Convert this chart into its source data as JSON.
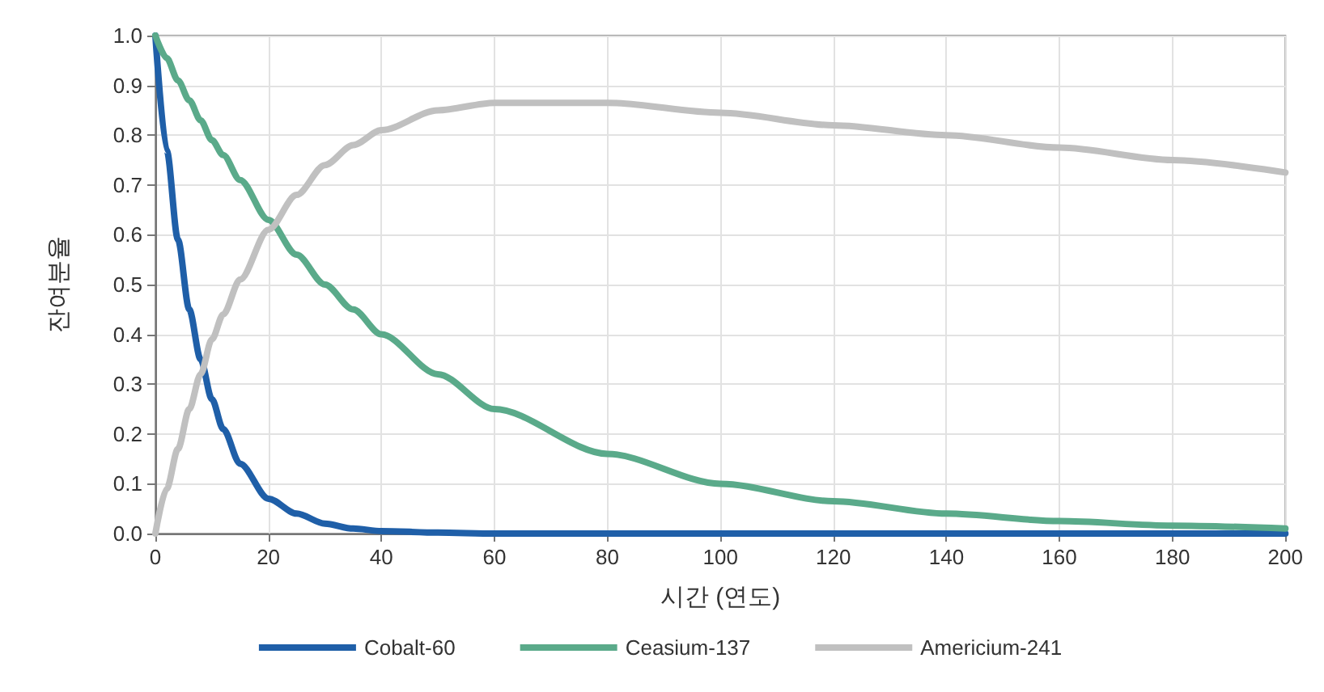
{
  "chart_data": {
    "type": "line",
    "xlabel": "시간 (연도)",
    "ylabel": "잔여분율",
    "x": [
      0,
      2,
      4,
      6,
      8,
      10,
      12,
      15,
      20,
      25,
      30,
      35,
      40,
      50,
      60,
      80,
      100,
      120,
      140,
      160,
      180,
      200
    ],
    "series": [
      {
        "name": "Cobalt-60",
        "color": "#1f5fa8",
        "values": [
          1.0,
          0.77,
          0.59,
          0.45,
          0.35,
          0.27,
          0.21,
          0.14,
          0.07,
          0.04,
          0.02,
          0.01,
          0.005,
          0.002,
          0,
          0,
          0,
          0,
          0,
          0,
          0,
          0
        ]
      },
      {
        "name": "Ceasium-137",
        "color": "#5aaa8a",
        "values": [
          1.0,
          0.955,
          0.91,
          0.87,
          0.83,
          0.79,
          0.76,
          0.71,
          0.63,
          0.56,
          0.5,
          0.45,
          0.4,
          0.32,
          0.25,
          0.16,
          0.1,
          0.065,
          0.04,
          0.025,
          0.016,
          0.01
        ]
      },
      {
        "name": "Americium-241",
        "color": "#c0c0c0",
        "values": [
          0,
          0.09,
          0.17,
          0.25,
          0.32,
          0.39,
          0.44,
          0.51,
          0.61,
          0.68,
          0.74,
          0.78,
          0.81,
          0.85,
          0.865,
          0.865,
          0.845,
          0.82,
          0.8,
          0.775,
          0.75,
          0.725
        ]
      }
    ],
    "xlim": [
      0,
      200
    ],
    "xticks": [
      0,
      20,
      40,
      60,
      80,
      100,
      120,
      140,
      160,
      180,
      200
    ],
    "ylim": [
      0,
      1
    ],
    "yticks": [
      {
        "value": 0,
        "label": "0.0"
      },
      {
        "value": 0.1,
        "label": "0.1"
      },
      {
        "value": 0.2,
        "label": "0.2"
      },
      {
        "value": 0.3,
        "label": "0.3"
      },
      {
        "value": 0.4,
        "label": "0.4"
      },
      {
        "value": 0.5,
        "label": "0.5"
      },
      {
        "value": 0.6,
        "label": "0.6"
      },
      {
        "value": 0.7,
        "label": "0.7"
      },
      {
        "value": 0.8,
        "label": "0.8"
      },
      {
        "value": 0.9,
        "label": "0.9"
      },
      {
        "value": 1,
        "label": "1.0"
      }
    ],
    "grid": true,
    "legend": "bottom",
    "marker": "none",
    "line_style": "solid"
  }
}
